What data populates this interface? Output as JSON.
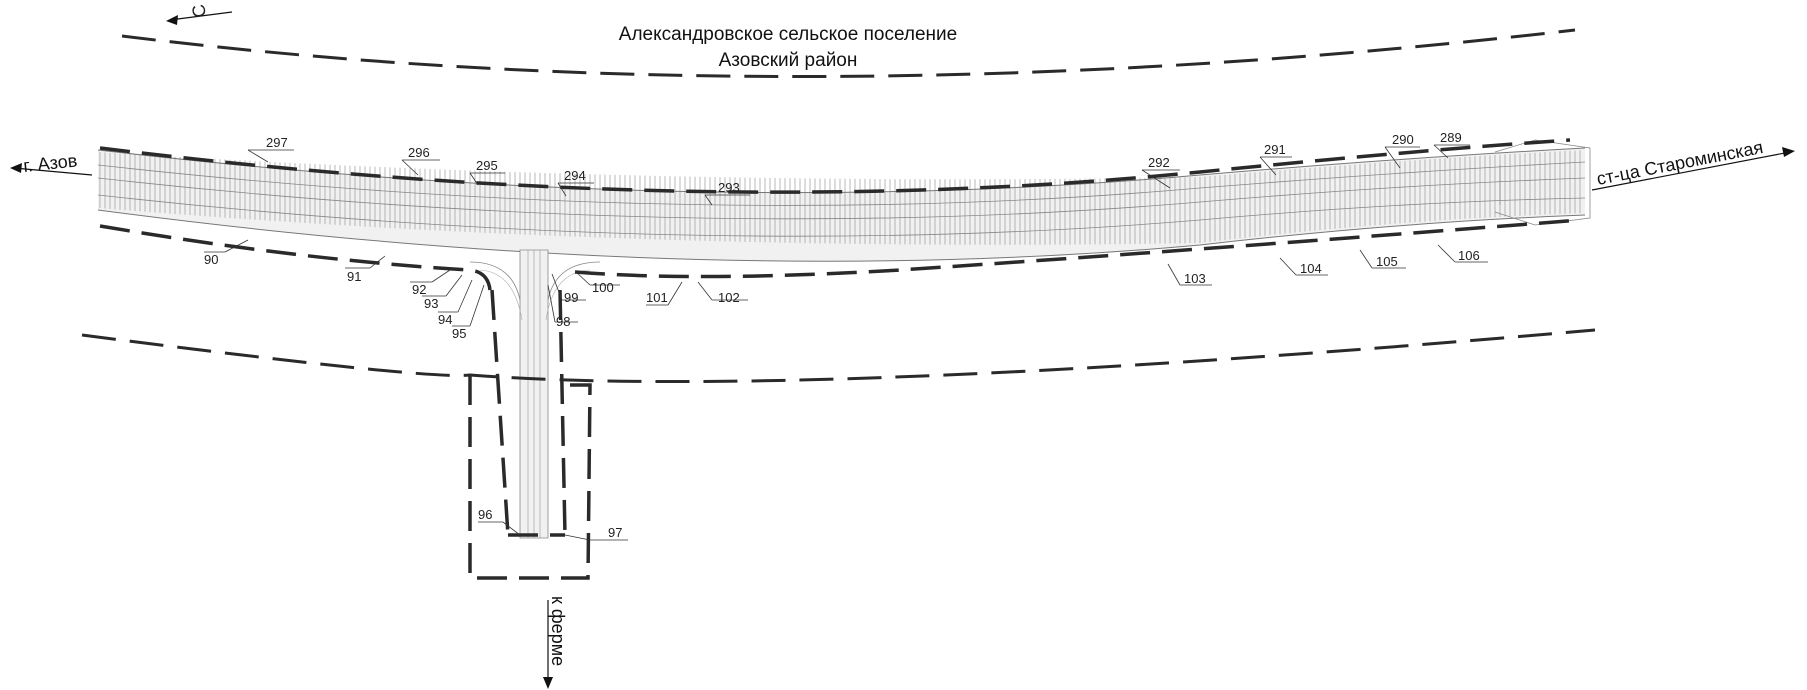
{
  "header": {
    "settlement": "Александровское сельское поселение",
    "district": "Азовский район"
  },
  "north_label": "С",
  "directions": {
    "west": "г. Азов",
    "east": "ст-ца Староминская",
    "south": "к ферме"
  },
  "points": {
    "p297": "297",
    "p296": "296",
    "p295": "295",
    "p294": "294",
    "p293": "293",
    "p292": "292",
    "p291": "291",
    "p290": "290",
    "p289": "289",
    "p90": "90",
    "p91": "91",
    "p92": "92",
    "p93": "93",
    "p94": "94",
    "p95": "95",
    "p96": "96",
    "p97": "97",
    "p98": "98",
    "p99": "99",
    "p100": "100",
    "p101": "101",
    "p102": "102",
    "p103": "103",
    "p104": "104",
    "p105": "105",
    "p106": "106"
  },
  "colors": {
    "boundary": "#2a2a2a",
    "road_hatch": "#8a8a8a",
    "text": "#111111"
  }
}
